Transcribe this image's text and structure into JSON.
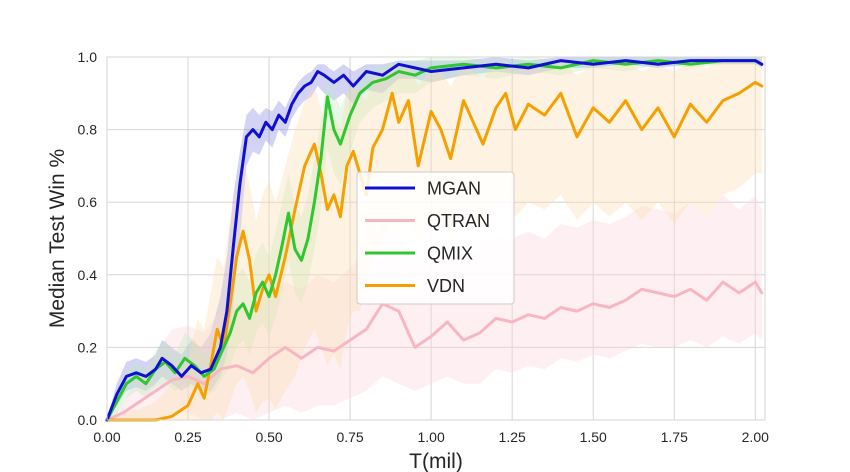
{
  "chart_data": {
    "type": "line",
    "xlabel": "T(mil)",
    "ylabel": "Median Test Win %",
    "xlim": [
      0.0,
      2.03
    ],
    "ylim": [
      0.0,
      1.0
    ],
    "xticks": [
      "0.00",
      "0.25",
      "0.50",
      "0.75",
      "1.00",
      "1.25",
      "1.50",
      "1.75",
      "2.00"
    ],
    "yticks": [
      "0.0",
      "0.2",
      "0.4",
      "0.6",
      "0.8",
      "1.0"
    ],
    "grid": true,
    "legend_position": "center",
    "series": [
      {
        "name": "MGAN",
        "color": "#1010d0",
        "band_color": "#8080e6",
        "x": [
          0.0,
          0.03,
          0.06,
          0.09,
          0.12,
          0.15,
          0.17,
          0.2,
          0.23,
          0.26,
          0.29,
          0.32,
          0.35,
          0.37,
          0.39,
          0.41,
          0.43,
          0.45,
          0.47,
          0.49,
          0.51,
          0.53,
          0.55,
          0.57,
          0.59,
          0.61,
          0.63,
          0.65,
          0.67,
          0.7,
          0.73,
          0.76,
          0.8,
          0.85,
          0.9,
          0.95,
          1.0,
          1.1,
          1.2,
          1.3,
          1.4,
          1.5,
          1.6,
          1.7,
          1.8,
          1.9,
          2.0,
          2.02
        ],
        "y": [
          0.0,
          0.07,
          0.12,
          0.13,
          0.12,
          0.14,
          0.17,
          0.15,
          0.12,
          0.15,
          0.13,
          0.14,
          0.2,
          0.3,
          0.48,
          0.65,
          0.78,
          0.8,
          0.78,
          0.82,
          0.8,
          0.84,
          0.82,
          0.87,
          0.9,
          0.92,
          0.93,
          0.96,
          0.95,
          0.93,
          0.95,
          0.92,
          0.96,
          0.95,
          0.98,
          0.97,
          0.96,
          0.97,
          0.98,
          0.97,
          0.99,
          0.98,
          0.99,
          0.98,
          0.99,
          0.99,
          0.99,
          0.98
        ],
        "band_low": [
          0.0,
          0.04,
          0.08,
          0.09,
          0.08,
          0.1,
          0.12,
          0.1,
          0.08,
          0.1,
          0.08,
          0.08,
          0.12,
          0.18,
          0.32,
          0.5,
          0.7,
          0.74,
          0.73,
          0.77,
          0.75,
          0.8,
          0.78,
          0.83,
          0.86,
          0.88,
          0.89,
          0.92,
          0.9,
          0.88,
          0.9,
          0.87,
          0.91,
          0.9,
          0.94,
          0.94,
          0.93,
          0.95,
          0.96,
          0.95,
          0.97,
          0.97,
          0.98,
          0.97,
          0.98,
          0.98,
          0.98,
          0.97
        ],
        "band_high": [
          0.0,
          0.1,
          0.16,
          0.17,
          0.16,
          0.18,
          0.22,
          0.2,
          0.18,
          0.22,
          0.2,
          0.24,
          0.34,
          0.45,
          0.62,
          0.74,
          0.84,
          0.86,
          0.84,
          0.86,
          0.85,
          0.88,
          0.86,
          0.9,
          0.93,
          0.95,
          0.96,
          0.98,
          0.98,
          0.96,
          0.98,
          0.96,
          0.98,
          0.98,
          0.99,
          0.99,
          0.99,
          0.99,
          1.0,
          0.99,
          1.0,
          1.0,
          1.0,
          1.0,
          1.0,
          1.0,
          1.0,
          1.0
        ]
      },
      {
        "name": "QTRAN",
        "color": "#f7b6c2",
        "band_color": "#fbd3da",
        "x": [
          0.0,
          0.05,
          0.1,
          0.15,
          0.2,
          0.25,
          0.3,
          0.35,
          0.4,
          0.45,
          0.5,
          0.55,
          0.6,
          0.65,
          0.7,
          0.75,
          0.8,
          0.85,
          0.9,
          0.95,
          1.0,
          1.05,
          1.1,
          1.15,
          1.2,
          1.25,
          1.3,
          1.35,
          1.4,
          1.45,
          1.5,
          1.55,
          1.6,
          1.65,
          1.7,
          1.75,
          1.8,
          1.85,
          1.9,
          1.95,
          2.0,
          2.02
        ],
        "y": [
          0.0,
          0.02,
          0.05,
          0.08,
          0.11,
          0.12,
          0.1,
          0.14,
          0.15,
          0.13,
          0.17,
          0.2,
          0.17,
          0.2,
          0.19,
          0.22,
          0.25,
          0.32,
          0.3,
          0.2,
          0.23,
          0.27,
          0.22,
          0.24,
          0.28,
          0.27,
          0.29,
          0.28,
          0.31,
          0.3,
          0.32,
          0.31,
          0.33,
          0.36,
          0.35,
          0.34,
          0.36,
          0.33,
          0.38,
          0.35,
          0.38,
          0.35
        ],
        "band_low": [
          0.0,
          0.0,
          0.0,
          0.0,
          0.02,
          0.02,
          0.0,
          0.0,
          0.02,
          0.0,
          0.02,
          0.04,
          0.02,
          0.04,
          0.04,
          0.06,
          0.08,
          0.12,
          0.1,
          0.08,
          0.1,
          0.12,
          0.1,
          0.1,
          0.14,
          0.13,
          0.15,
          0.14,
          0.17,
          0.16,
          0.18,
          0.17,
          0.19,
          0.21,
          0.2,
          0.2,
          0.22,
          0.2,
          0.23,
          0.21,
          0.24,
          0.22
        ],
        "band_high": [
          0.0,
          0.05,
          0.12,
          0.18,
          0.25,
          0.26,
          0.24,
          0.3,
          0.32,
          0.3,
          0.35,
          0.38,
          0.36,
          0.4,
          0.38,
          0.42,
          0.46,
          0.55,
          0.52,
          0.42,
          0.45,
          0.5,
          0.45,
          0.47,
          0.5,
          0.5,
          0.52,
          0.5,
          0.54,
          0.53,
          0.55,
          0.54,
          0.56,
          0.59,
          0.58,
          0.57,
          0.6,
          0.56,
          0.62,
          0.58,
          0.62,
          0.58
        ]
      },
      {
        "name": "QMIX",
        "color": "#2ec72e",
        "band_color": "#b9ebb9",
        "x": [
          0.0,
          0.03,
          0.06,
          0.09,
          0.12,
          0.15,
          0.18,
          0.21,
          0.24,
          0.27,
          0.3,
          0.33,
          0.36,
          0.38,
          0.4,
          0.42,
          0.44,
          0.46,
          0.48,
          0.5,
          0.52,
          0.54,
          0.56,
          0.58,
          0.6,
          0.62,
          0.64,
          0.66,
          0.68,
          0.7,
          0.72,
          0.75,
          0.78,
          0.82,
          0.86,
          0.9,
          0.95,
          1.0,
          1.1,
          1.2,
          1.3,
          1.4,
          1.5,
          1.6,
          1.7,
          1.8,
          1.9,
          2.0,
          2.02
        ],
        "y": [
          0.0,
          0.05,
          0.1,
          0.12,
          0.1,
          0.14,
          0.16,
          0.13,
          0.17,
          0.15,
          0.12,
          0.14,
          0.2,
          0.24,
          0.3,
          0.32,
          0.28,
          0.35,
          0.38,
          0.34,
          0.4,
          0.48,
          0.57,
          0.47,
          0.44,
          0.5,
          0.6,
          0.72,
          0.89,
          0.8,
          0.76,
          0.84,
          0.9,
          0.93,
          0.94,
          0.96,
          0.95,
          0.97,
          0.98,
          0.97,
          0.98,
          0.97,
          0.99,
          0.98,
          0.99,
          0.98,
          0.99,
          0.99,
          0.98
        ],
        "band_low": [
          0.0,
          0.02,
          0.06,
          0.08,
          0.06,
          0.09,
          0.1,
          0.08,
          0.1,
          0.08,
          0.06,
          0.08,
          0.12,
          0.15,
          0.2,
          0.22,
          0.18,
          0.24,
          0.27,
          0.23,
          0.28,
          0.35,
          0.44,
          0.35,
          0.32,
          0.38,
          0.47,
          0.58,
          0.75,
          0.68,
          0.65,
          0.74,
          0.82,
          0.86,
          0.88,
          0.9,
          0.9,
          0.93,
          0.95,
          0.94,
          0.96,
          0.95,
          0.97,
          0.96,
          0.98,
          0.97,
          0.98,
          0.98,
          0.97
        ],
        "band_high": [
          0.0,
          0.08,
          0.14,
          0.16,
          0.14,
          0.19,
          0.22,
          0.18,
          0.24,
          0.22,
          0.18,
          0.2,
          0.28,
          0.33,
          0.4,
          0.42,
          0.38,
          0.46,
          0.49,
          0.45,
          0.52,
          0.6,
          0.68,
          0.59,
          0.56,
          0.62,
          0.72,
          0.82,
          0.95,
          0.9,
          0.86,
          0.92,
          0.95,
          0.97,
          0.98,
          0.99,
          0.99,
          1.0,
          1.0,
          0.99,
          1.0,
          0.99,
          1.0,
          1.0,
          1.0,
          1.0,
          1.0,
          1.0,
          0.99
        ]
      },
      {
        "name": "VDN",
        "color": "#f5a000",
        "band_color": "#fcdcb0",
        "x": [
          0.0,
          0.05,
          0.1,
          0.15,
          0.2,
          0.25,
          0.28,
          0.3,
          0.32,
          0.34,
          0.36,
          0.38,
          0.4,
          0.42,
          0.44,
          0.46,
          0.48,
          0.5,
          0.52,
          0.55,
          0.58,
          0.61,
          0.64,
          0.66,
          0.68,
          0.7,
          0.72,
          0.74,
          0.76,
          0.78,
          0.8,
          0.82,
          0.85,
          0.88,
          0.9,
          0.93,
          0.96,
          1.0,
          1.03,
          1.06,
          1.1,
          1.13,
          1.16,
          1.2,
          1.23,
          1.26,
          1.3,
          1.35,
          1.4,
          1.45,
          1.5,
          1.55,
          1.6,
          1.65,
          1.7,
          1.75,
          1.8,
          1.85,
          1.9,
          1.95,
          2.0,
          2.02
        ],
        "y": [
          0.0,
          0.0,
          0.0,
          0.0,
          0.01,
          0.04,
          0.1,
          0.06,
          0.15,
          0.25,
          0.2,
          0.32,
          0.45,
          0.52,
          0.44,
          0.3,
          0.36,
          0.4,
          0.34,
          0.45,
          0.58,
          0.7,
          0.76,
          0.68,
          0.58,
          0.62,
          0.56,
          0.7,
          0.74,
          0.68,
          0.62,
          0.75,
          0.8,
          0.9,
          0.82,
          0.88,
          0.7,
          0.85,
          0.8,
          0.72,
          0.88,
          0.82,
          0.76,
          0.86,
          0.9,
          0.8,
          0.87,
          0.84,
          0.9,
          0.78,
          0.86,
          0.82,
          0.88,
          0.8,
          0.86,
          0.78,
          0.87,
          0.82,
          0.88,
          0.9,
          0.93,
          0.92
        ],
        "band_low": [
          0.0,
          0.0,
          0.0,
          0.0,
          0.0,
          0.0,
          0.0,
          0.0,
          0.0,
          0.02,
          0.0,
          0.05,
          0.1,
          0.12,
          0.08,
          0.02,
          0.05,
          0.06,
          0.03,
          0.08,
          0.12,
          0.2,
          0.25,
          0.2,
          0.15,
          0.18,
          0.14,
          0.25,
          0.3,
          0.3,
          0.35,
          0.45,
          0.5,
          0.55,
          0.52,
          0.55,
          0.48,
          0.55,
          0.55,
          0.5,
          0.6,
          0.56,
          0.52,
          0.6,
          0.62,
          0.56,
          0.6,
          0.58,
          0.62,
          0.55,
          0.6,
          0.56,
          0.6,
          0.55,
          0.6,
          0.54,
          0.6,
          0.56,
          0.62,
          0.64,
          0.68,
          0.68
        ],
        "band_high": [
          0.0,
          0.02,
          0.03,
          0.05,
          0.1,
          0.16,
          0.28,
          0.25,
          0.35,
          0.45,
          0.42,
          0.55,
          0.65,
          0.72,
          0.65,
          0.55,
          0.62,
          0.66,
          0.6,
          0.7,
          0.8,
          0.88,
          0.92,
          0.86,
          0.8,
          0.84,
          0.8,
          0.9,
          0.93,
          0.9,
          0.88,
          0.94,
          0.96,
          0.98,
          0.96,
          0.98,
          0.92,
          0.97,
          0.96,
          0.92,
          0.98,
          0.96,
          0.94,
          0.98,
          0.99,
          0.96,
          0.98,
          0.97,
          0.99,
          0.95,
          0.98,
          0.97,
          0.99,
          0.96,
          0.98,
          0.96,
          0.99,
          0.97,
          0.99,
          0.99,
          1.0,
          1.0
        ]
      }
    ]
  }
}
